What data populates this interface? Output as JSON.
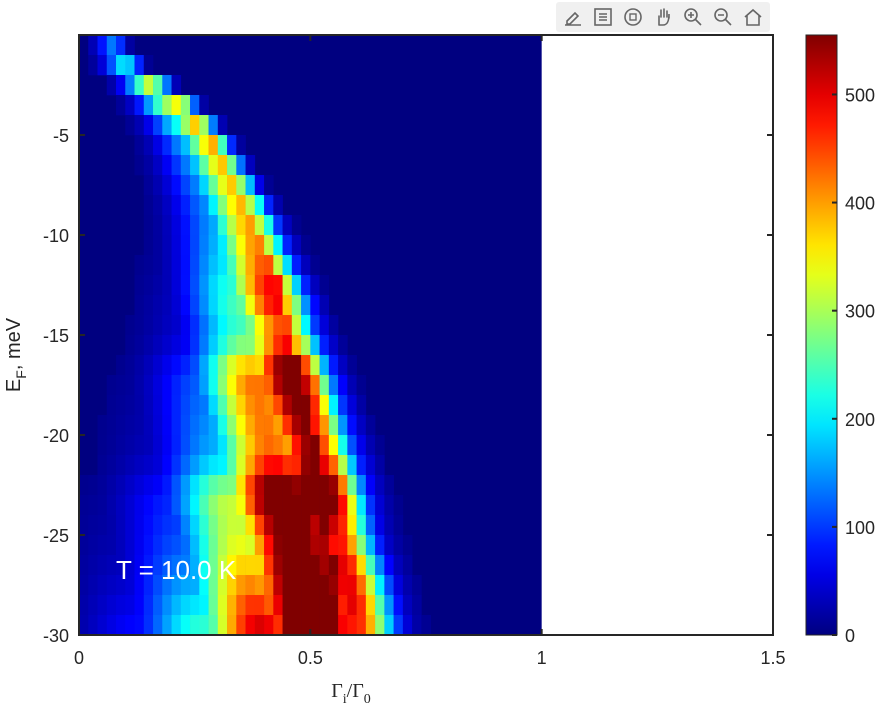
{
  "toolbar": {
    "buttons": [
      {
        "name": "edit-plot-icon"
      },
      {
        "name": "legend-icon"
      },
      {
        "name": "rotate-3d-icon"
      },
      {
        "name": "pan-hand-icon"
      },
      {
        "name": "zoom-in-icon"
      },
      {
        "name": "zoom-out-icon"
      },
      {
        "name": "home-icon"
      }
    ]
  },
  "chart_data": {
    "type": "heatmap",
    "colormap": "jet",
    "xlabel": "Γi/Γ0",
    "xlabel_main": "Γ",
    "xlabel_sub1": "i",
    "xlabel_sep": "/Γ",
    "xlabel_sub2": "0",
    "ylabel": "EF, meV",
    "ylabel_main": "E",
    "ylabel_sub": "F",
    "ylabel_rest": ", meV",
    "annotation": "T = 10.0 K",
    "xlim": [
      0,
      1.5
    ],
    "ylim": [
      -30,
      0
    ],
    "data_xlim": [
      0,
      1
    ],
    "xticks": [
      0,
      0.5,
      1,
      1.5
    ],
    "xtick_labels": [
      "0",
      "0.5",
      "1",
      "1.5"
    ],
    "yticks": [
      -5,
      -10,
      -15,
      -20,
      -25,
      -30
    ],
    "ytick_labels": [
      "-5",
      "-10",
      "-15",
      "-20",
      "-25",
      "-30"
    ],
    "colorbar": {
      "range": [
        0,
        555
      ],
      "ticks": [
        0,
        100,
        200,
        300,
        400,
        500
      ],
      "tick_labels": [
        "0",
        "100",
        "200",
        "300",
        "400",
        "500"
      ]
    },
    "grid": false,
    "bins": {
      "x_count": 50,
      "y_count": 30,
      "x_step": 0.02,
      "y_step": 1
    },
    "ridge": {
      "E_F": [
        -1,
        -3,
        -5,
        -7,
        -9,
        -11,
        -13,
        -15,
        -17,
        -19,
        -21,
        -23,
        -25,
        -27,
        -29
      ],
      "peak_Gamma": [
        0.08,
        0.2,
        0.28,
        0.33,
        0.38,
        0.41,
        0.44,
        0.46,
        0.48,
        0.5,
        0.52,
        0.53,
        0.54,
        0.56,
        0.57
      ],
      "peak_count": [
        100,
        320,
        280,
        260,
        280,
        300,
        360,
        300,
        470,
        420,
        400,
        555,
        460,
        500,
        540
      ]
    }
  }
}
